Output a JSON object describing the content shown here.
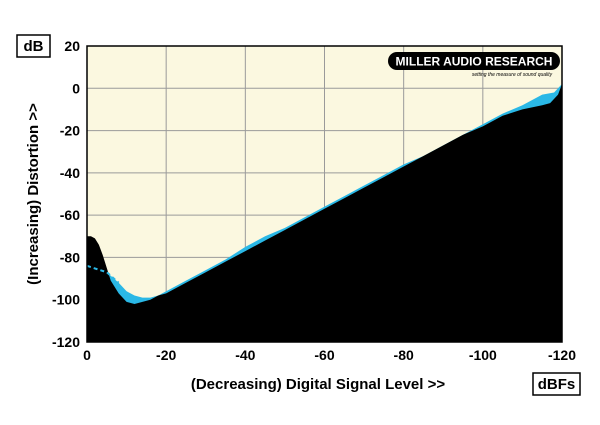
{
  "chart_data": {
    "type": "area",
    "title": "",
    "xlabel": "(Decreasing) Digital Signal Level >>",
    "ylabel": "(Increasing) Distortion >>",
    "x_unit": "dBFs",
    "y_unit": "dB",
    "xlim": [
      0,
      -120
    ],
    "ylim": [
      -120,
      20
    ],
    "x_ticks": [
      "0",
      "-20",
      "-40",
      "-60",
      "-80",
      "-100",
      "-120"
    ],
    "y_ticks": [
      "20",
      "0",
      "-20",
      "-40",
      "-60",
      "-80",
      "-100",
      "-120"
    ],
    "grid": true,
    "colors": {
      "plot_background": "#fbf8e0",
      "black_area": "#000000",
      "blue_area": "#2ab8e6",
      "grid": "#9a9a9a"
    },
    "series": [
      {
        "style": "black",
        "x": [
          0,
          -1,
          -2,
          -3,
          -4,
          -5,
          -6,
          -8,
          -10,
          -12,
          -14,
          -16,
          -18,
          -20,
          -25,
          -30,
          -35,
          -40,
          -45,
          -50,
          -55,
          -60,
          -65,
          -70,
          -75,
          -80,
          -85,
          -90,
          -95,
          -100,
          -105,
          -110,
          -115,
          -117,
          -118,
          -119,
          -120
        ],
        "y": [
          -70,
          -70,
          -71,
          -74,
          -79,
          -85,
          -91,
          -97,
          -101,
          -102,
          -101,
          -100,
          -98,
          -97,
          -92,
          -87,
          -82,
          -77,
          -72,
          -67,
          -62,
          -57,
          -52,
          -47,
          -42,
          -37,
          -32,
          -27,
          -22,
          -18,
          -13,
          -10,
          -8,
          -7,
          -5,
          -3,
          2
        ]
      },
      {
        "style": "blue",
        "x": [
          0,
          -5,
          -8,
          -10,
          -12,
          -14,
          -16,
          -18,
          -20,
          -25,
          -30,
          -35,
          -40,
          -45,
          -50,
          -55,
          -60,
          -65,
          -70,
          -75,
          -80,
          -85,
          -90,
          -95,
          -100,
          -105,
          -110,
          -115,
          -118,
          -120
        ],
        "y": [
          -84,
          -87,
          -92,
          -96,
          -98,
          -99,
          -99,
          -98,
          -96,
          -91,
          -86,
          -81,
          -75,
          -70,
          -66,
          -61,
          -56,
          -51,
          -46,
          -41,
          -36,
          -32,
          -27,
          -22,
          -17,
          -12,
          -8,
          -3,
          -2,
          2
        ]
      }
    ]
  },
  "logo": {
    "text": "MILLER AUDIO RESEARCH",
    "tagline": "setting the measure of sound quality"
  }
}
